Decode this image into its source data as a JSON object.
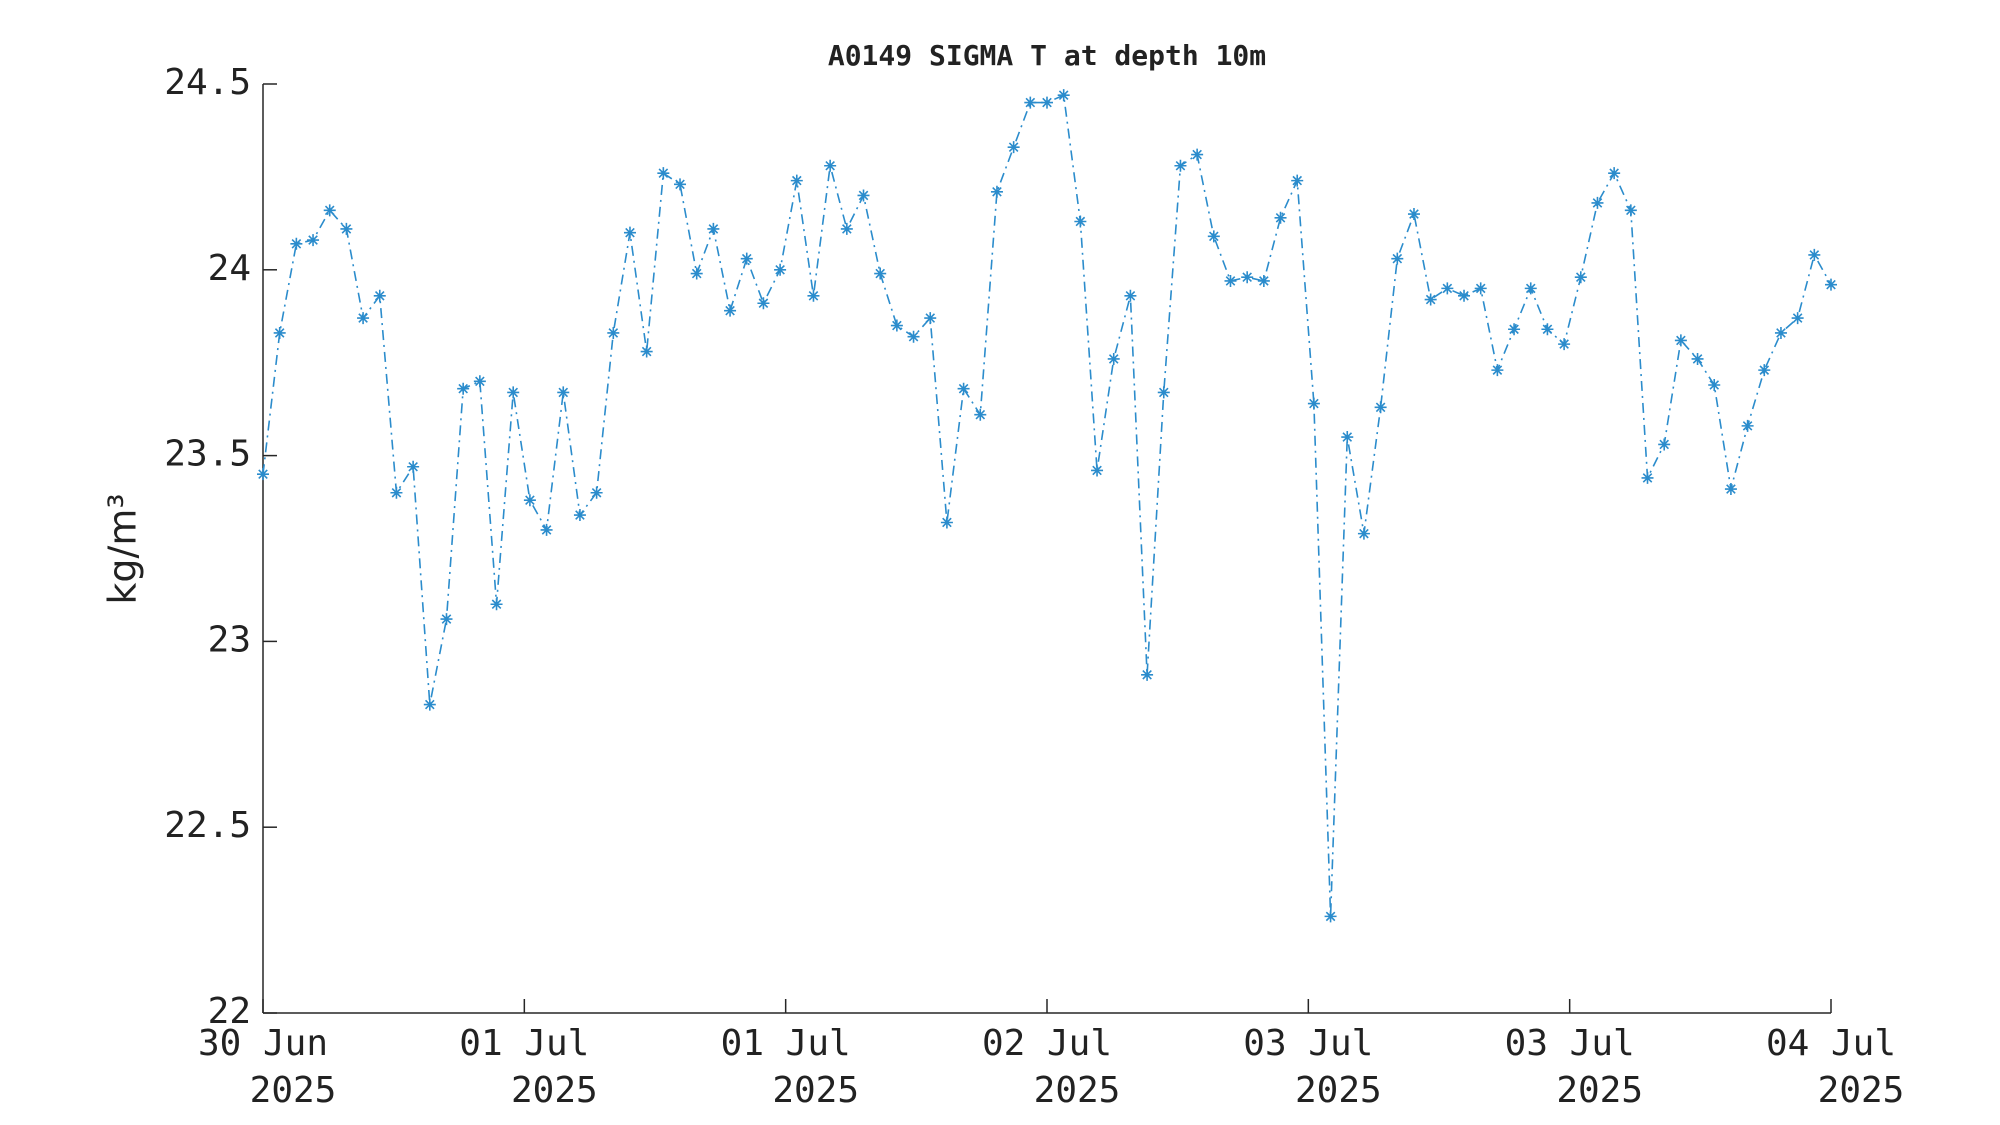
{
  "chart_data": {
    "type": "line",
    "title": "A0149 SIGMA T at depth 10m",
    "ylabel": "kg/m³",
    "x_tick_labels": [
      [
        "30 Jun",
        "2025"
      ],
      [
        "01 Jul",
        "2025"
      ],
      [
        "01 Jul",
        "2025"
      ],
      [
        "02 Jul",
        "2025"
      ],
      [
        "03 Jul",
        "2025"
      ],
      [
        "03 Jul",
        "2025"
      ],
      [
        "04 Jul",
        "2025"
      ]
    ],
    "ylim": [
      22,
      24.5
    ],
    "yticks": [
      22,
      22.5,
      23,
      23.5,
      24,
      24.5
    ],
    "series": [
      {
        "color": "#2b8ccc",
        "values": [
          23.45,
          23.83,
          24.07,
          24.08,
          24.16,
          24.11,
          23.87,
          23.93,
          23.4,
          23.47,
          22.83,
          23.06,
          23.68,
          23.7,
          23.1,
          23.67,
          23.38,
          23.3,
          23.67,
          23.34,
          23.4,
          23.83,
          24.1,
          23.78,
          24.26,
          24.23,
          23.99,
          24.11,
          23.89,
          24.03,
          23.91,
          24.0,
          24.24,
          23.93,
          24.28,
          24.11,
          24.2,
          23.99,
          23.85,
          23.82,
          23.87,
          23.32,
          23.68,
          23.61,
          24.21,
          24.33,
          24.45,
          24.45,
          24.47,
          24.13,
          23.46,
          23.76,
          23.93,
          22.91,
          23.67,
          24.28,
          24.31,
          24.09,
          23.97,
          23.98,
          23.97,
          24.14,
          24.24,
          23.64,
          22.26,
          23.55,
          23.29,
          23.63,
          24.03,
          24.15,
          23.92,
          23.95,
          23.93,
          23.95,
          23.73,
          23.84,
          23.95,
          23.84,
          23.8,
          23.98,
          24.18,
          24.26,
          24.16,
          23.44,
          23.53,
          23.81,
          23.76,
          23.69,
          23.41,
          23.58,
          23.73,
          23.83,
          23.87,
          24.04,
          23.96
        ]
      }
    ]
  }
}
